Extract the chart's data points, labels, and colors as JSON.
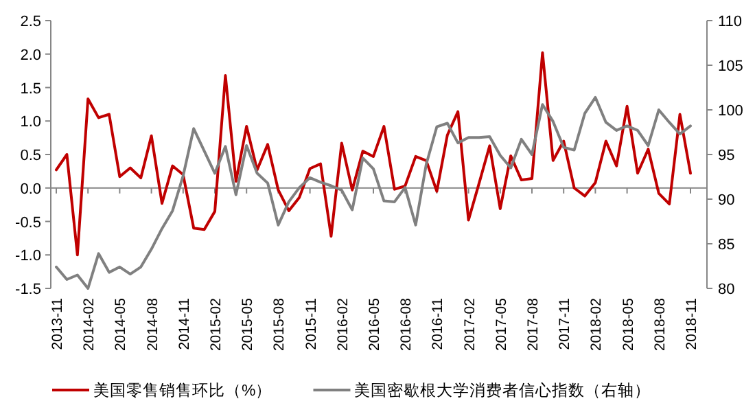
{
  "chart_data": {
    "type": "line",
    "categories": [
      "2013-11",
      null,
      null,
      "2014-02",
      null,
      null,
      "2014-05",
      null,
      null,
      "2014-08",
      null,
      null,
      "2014-11",
      null,
      null,
      "2015-02",
      null,
      null,
      "2015-05",
      null,
      null,
      "2015-08",
      null,
      null,
      "2015-11",
      null,
      null,
      "2016-02",
      null,
      null,
      "2016-05",
      null,
      null,
      "2016-08",
      null,
      null,
      "2016-11",
      null,
      null,
      "2017-02",
      null,
      null,
      "2017-05",
      null,
      null,
      "2017-08",
      null,
      null,
      "2017-11",
      null,
      null,
      "2018-02",
      null,
      null,
      "2018-05",
      null,
      null,
      "2018-08",
      null,
      null,
      "2018-11"
    ],
    "series": [
      {
        "name": "美国零售销售环比（%）",
        "color": "#c00000",
        "values": [
          0.27,
          0.5,
          -1.0,
          1.33,
          1.05,
          1.1,
          0.17,
          0.3,
          0.15,
          0.78,
          -0.23,
          0.33,
          0.2,
          -0.6,
          -0.62,
          -0.35,
          1.68,
          0.1,
          0.92,
          0.27,
          0.65,
          -0.03,
          -0.34,
          -0.14,
          0.29,
          0.36,
          -0.72,
          0.67,
          -0.03,
          0.55,
          0.47,
          0.92,
          -0.02,
          0.03,
          0.47,
          0.41,
          -0.05,
          0.79,
          1.14,
          -0.48,
          0.07,
          0.63,
          -0.31,
          0.48,
          0.12,
          0.14,
          2.02,
          0.41,
          0.7,
          0.0,
          -0.12,
          0.08,
          0.7,
          0.33,
          1.22,
          0.22,
          0.58,
          -0.08,
          -0.24,
          1.1,
          0.22
        ]
      },
      {
        "name": "美国密歇根大学消费者信心指数（右轴）",
        "color": "#808080",
        "axis": "y2",
        "values": [
          82.4,
          81.0,
          81.5,
          80.0,
          83.9,
          81.8,
          82.4,
          81.6,
          82.4,
          84.4,
          86.7,
          88.7,
          92.6,
          97.9,
          95.4,
          92.9,
          95.9,
          90.5,
          96.0,
          92.9,
          91.8,
          87.1,
          89.7,
          91.3,
          92.4,
          91.9,
          91.5,
          91.0,
          88.8,
          94.6,
          93.4,
          89.8,
          89.7,
          91.3,
          87.1,
          93.9,
          98.1,
          98.5,
          96.3,
          96.9,
          96.9,
          97.0,
          94.9,
          93.5,
          96.7,
          95.0,
          100.6,
          98.7,
          95.8,
          95.5,
          99.6,
          101.4,
          98.6,
          97.7,
          98.2,
          97.7,
          96.0,
          100.0,
          98.6,
          97.3,
          98.2
        ]
      }
    ],
    "ylim": [
      -1.5,
      2.5
    ],
    "yticks": [
      -1.5,
      {
        "value": -1,
        "label": "-1.0"
      },
      -0.5,
      {
        "value": 0,
        "label": "0.0"
      },
      0.5,
      {
        "value": 1,
        "label": "1.0"
      },
      1.5,
      {
        "value": 2,
        "label": "2.0"
      },
      2.5
    ],
    "y2lim": [
      80,
      110
    ],
    "y2ticks": [
      80,
      85,
      90,
      95,
      100,
      105,
      110
    ],
    "legend": "bottom"
  }
}
